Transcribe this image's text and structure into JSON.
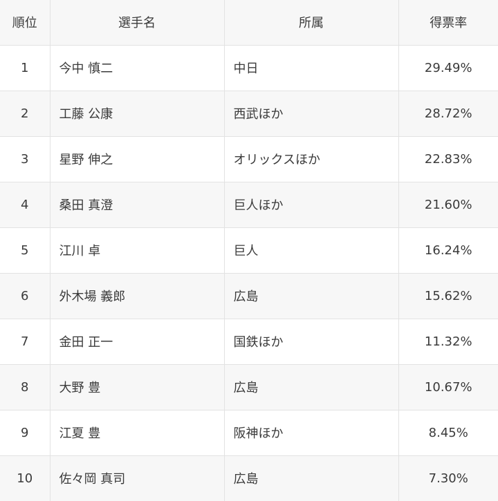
{
  "table": {
    "headers": {
      "rank": "順位",
      "player": "選手名",
      "team": "所属",
      "rate": "得票率"
    },
    "rows": [
      {
        "rank": "1",
        "player": "今中 慎二",
        "team": "中日",
        "rate": "29.49%"
      },
      {
        "rank": "2",
        "player": "工藤 公康",
        "team": "西武ほか",
        "rate": "28.72%"
      },
      {
        "rank": "3",
        "player": "星野 伸之",
        "team": "オリックスほか",
        "rate": "22.83%"
      },
      {
        "rank": "4",
        "player": "桑田 真澄",
        "team": "巨人ほか",
        "rate": "21.60%"
      },
      {
        "rank": "5",
        "player": "江川 卓",
        "team": "巨人",
        "rate": "16.24%"
      },
      {
        "rank": "6",
        "player": "外木場 義郎",
        "team": "広島",
        "rate": "15.62%"
      },
      {
        "rank": "7",
        "player": "金田 正一",
        "team": "国鉄ほか",
        "rate": "11.32%"
      },
      {
        "rank": "8",
        "player": "大野 豊",
        "team": "広島",
        "rate": "10.67%"
      },
      {
        "rank": "9",
        "player": "江夏 豊",
        "team": "阪神ほか",
        "rate": "8.45%"
      },
      {
        "rank": "10",
        "player": "佐々岡 真司",
        "team": "広島",
        "rate": "7.30%"
      }
    ]
  }
}
